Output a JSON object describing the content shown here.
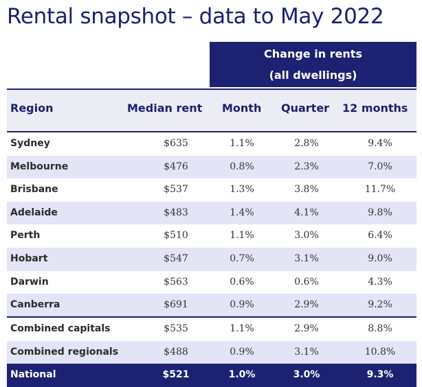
{
  "title": "Rental snapshot – data to May 2022",
  "band": {
    "line1": "Change in rents",
    "line2": "(all dwellings)"
  },
  "headers": {
    "region": "Region",
    "median": "Median rent",
    "month": "Month",
    "quarter": "Quarter",
    "year": "12 months"
  },
  "rows": [
    {
      "region": "Sydney",
      "median": "$635",
      "month": "1.1%",
      "quarter": "2.8%",
      "year": "9.4%"
    },
    {
      "region": "Melbourne",
      "median": "$476",
      "month": "0.8%",
      "quarter": "2.3%",
      "year": "7.0%"
    },
    {
      "region": "Brisbane",
      "median": "$537",
      "month": "1.3%",
      "quarter": "3.8%",
      "year": "11.7%"
    },
    {
      "region": "Adelaide",
      "median": "$483",
      "month": "1.4%",
      "quarter": "4.1%",
      "year": "9.8%"
    },
    {
      "region": "Perth",
      "median": "$510",
      "month": "1.1%",
      "quarter": "3.0%",
      "year": "6.4%"
    },
    {
      "region": "Hobart",
      "median": "$547",
      "month": "0.7%",
      "quarter": "3.1%",
      "year": "9.0%"
    },
    {
      "region": "Darwin",
      "median": "$563",
      "month": "0.6%",
      "quarter": "0.6%",
      "year": "4.3%"
    },
    {
      "region": "Canberra",
      "median": "$691",
      "month": "0.9%",
      "quarter": "2.9%",
      "year": "9.2%"
    },
    {
      "region": "Combined capitals",
      "median": "$535",
      "month": "1.1%",
      "quarter": "2.9%",
      "year": "8.8%"
    },
    {
      "region": "Combined regionals",
      "median": "$488",
      "month": "0.9%",
      "quarter": "3.1%",
      "year": "10.8%"
    },
    {
      "region": "National",
      "median": "$521",
      "month": "1.0%",
      "quarter": "3.0%",
      "year": "9.3%"
    }
  ],
  "colors": {
    "navy": "#1d2171",
    "stripe": "#e3e4f6",
    "header_bg": "#ececf4"
  }
}
